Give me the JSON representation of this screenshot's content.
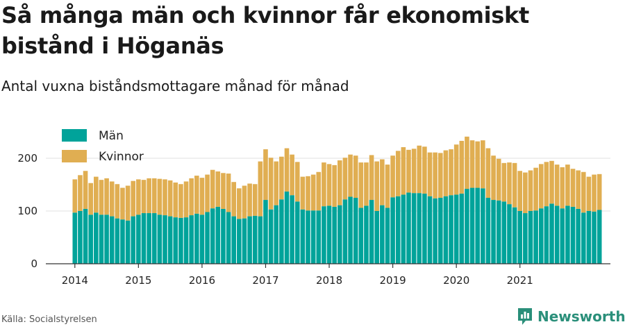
{
  "header": {
    "title": "Så många män och kvinnor får ekonomiskt bistånd i Höganäs",
    "subtitle": "Antal vuxna biståndsmottagare månad för månad"
  },
  "footer": {
    "source": "Källa: Socialstyrelsen",
    "brand": "Newsworthy"
  },
  "colors": {
    "men": "#00a39a",
    "women": "#e0ae52",
    "grid": "#e6e6e6",
    "axis": "#333333",
    "brand": "#2a8f7a"
  },
  "chart_data": {
    "type": "bar",
    "stacked": true,
    "grid": true,
    "legend_position": "top-left",
    "ylim": [
      0,
      250
    ],
    "y_ticks": [
      0,
      100,
      200
    ],
    "x_ticks": [
      "2014",
      "2015",
      "2016",
      "2017",
      "2018",
      "2019",
      "2020",
      "2021"
    ],
    "start": "2014-01",
    "series": [
      {
        "name": "Män",
        "values": [
          97,
          100,
          104,
          93,
          97,
          93,
          93,
          90,
          86,
          84,
          82,
          90,
          93,
          96,
          96,
          96,
          93,
          92,
          90,
          88,
          87,
          88,
          92,
          95,
          93,
          98,
          105,
          108,
          104,
          98,
          90,
          85,
          86,
          90,
          91,
          90,
          121,
          103,
          111,
          122,
          137,
          130,
          118,
          103,
          101,
          101,
          101,
          109,
          110,
          108,
          111,
          122,
          127,
          125,
          106,
          110,
          121,
          100,
          111,
          106,
          126,
          128,
          131,
          135,
          134,
          134,
          133,
          128,
          124,
          125,
          128,
          130,
          131,
          133,
          142,
          144,
          144,
          143,
          125,
          121,
          120,
          118,
          113,
          107,
          100,
          96,
          100,
          101,
          105,
          109,
          114,
          110,
          105,
          110,
          108,
          104,
          97,
          100,
          99,
          102
        ]
      },
      {
        "name": "Kvinnor",
        "values": [
          63,
          68,
          72,
          60,
          68,
          66,
          69,
          66,
          65,
          60,
          66,
          67,
          67,
          63,
          66,
          66,
          68,
          68,
          68,
          66,
          64,
          68,
          70,
          72,
          70,
          71,
          73,
          67,
          68,
          73,
          65,
          58,
          62,
          62,
          60,
          104,
          96,
          98,
          83,
          81,
          82,
          77,
          75,
          62,
          65,
          68,
          73,
          83,
          79,
          79,
          85,
          79,
          80,
          80,
          86,
          82,
          85,
          94,
          87,
          82,
          79,
          86,
          90,
          81,
          84,
          90,
          89,
          83,
          87,
          85,
          87,
          87,
          95,
          100,
          99,
          90,
          88,
          91,
          94,
          84,
          79,
          73,
          79,
          84,
          76,
          77,
          77,
          81,
          84,
          84,
          81,
          78,
          78,
          78,
          72,
          73,
          77,
          65,
          70,
          68
        ]
      }
    ]
  }
}
